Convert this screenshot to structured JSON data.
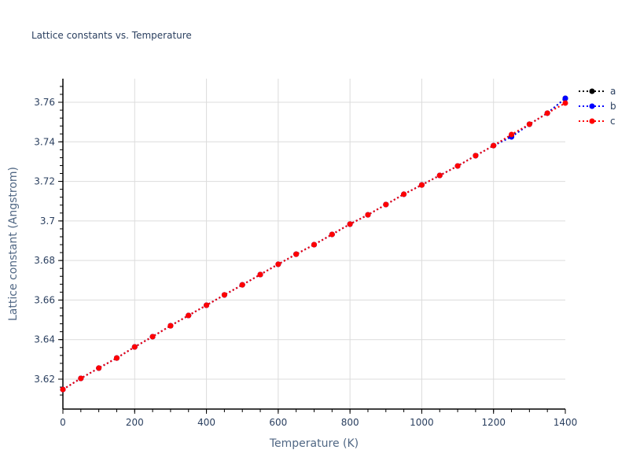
{
  "title": "Lattice constants vs. Temperature",
  "legend": [
    {
      "name": "a",
      "color": "#000000"
    },
    {
      "name": "b",
      "color": "#0000ff"
    },
    {
      "name": "c",
      "color": "#ff0000"
    }
  ],
  "chart_data": {
    "type": "line",
    "title": "Lattice constants vs. Temperature",
    "xlabel": "Temperature (K)",
    "ylabel": "Lattice constant (Angstrom)",
    "xlim": [
      0,
      1400
    ],
    "ylim": [
      3.6095,
      3.7715
    ],
    "xticks": [
      0,
      200,
      400,
      600,
      800,
      1000,
      1200,
      1400
    ],
    "yticks": [
      3.62,
      3.64,
      3.66,
      3.68,
      3.7,
      3.72,
      3.74,
      3.76
    ],
    "ytick_labels": [
      "3.62",
      "3.64",
      "3.66",
      "3.68",
      "3.7",
      "3.72",
      "3.74",
      "3.76"
    ],
    "grid": true,
    "legend_position": "top-right-outside",
    "line_style": "dotted with markers",
    "x": [
      0,
      50,
      100,
      150,
      200,
      250,
      300,
      350,
      400,
      450,
      500,
      550,
      600,
      650,
      700,
      750,
      800,
      850,
      900,
      950,
      1000,
      1050,
      1100,
      1150,
      1200,
      1250,
      1300,
      1350,
      1400
    ],
    "series": [
      {
        "name": "a",
        "color": "#000000",
        "values": [
          3.6148,
          3.6204,
          3.6256,
          3.6307,
          3.6363,
          3.6415,
          3.647,
          3.6522,
          3.6574,
          3.6626,
          3.6677,
          3.6729,
          3.6781,
          3.6832,
          3.688,
          3.6932,
          3.6984,
          3.7031,
          3.7083,
          3.7135,
          3.7182,
          3.723,
          3.7278,
          3.733,
          3.7381,
          3.7428,
          3.7489,
          3.7545,
          3.762
        ]
      },
      {
        "name": "b",
        "color": "#0000ff",
        "values": [
          3.6148,
          3.6204,
          3.6256,
          3.6307,
          3.6363,
          3.6415,
          3.647,
          3.6522,
          3.6574,
          3.6626,
          3.6677,
          3.6729,
          3.6781,
          3.6832,
          3.688,
          3.6932,
          3.6984,
          3.7031,
          3.7083,
          3.7135,
          3.7182,
          3.723,
          3.7278,
          3.733,
          3.7381,
          3.7425,
          3.7489,
          3.7545,
          3.762
        ]
      },
      {
        "name": "c",
        "color": "#ff0000",
        "values": [
          3.6148,
          3.6204,
          3.6256,
          3.6307,
          3.6363,
          3.6415,
          3.647,
          3.6522,
          3.6574,
          3.6626,
          3.6677,
          3.6729,
          3.6781,
          3.6832,
          3.688,
          3.6932,
          3.6984,
          3.7031,
          3.7083,
          3.7135,
          3.7182,
          3.723,
          3.7278,
          3.733,
          3.7381,
          3.7437,
          3.7489,
          3.7545,
          3.7596
        ]
      }
    ]
  }
}
